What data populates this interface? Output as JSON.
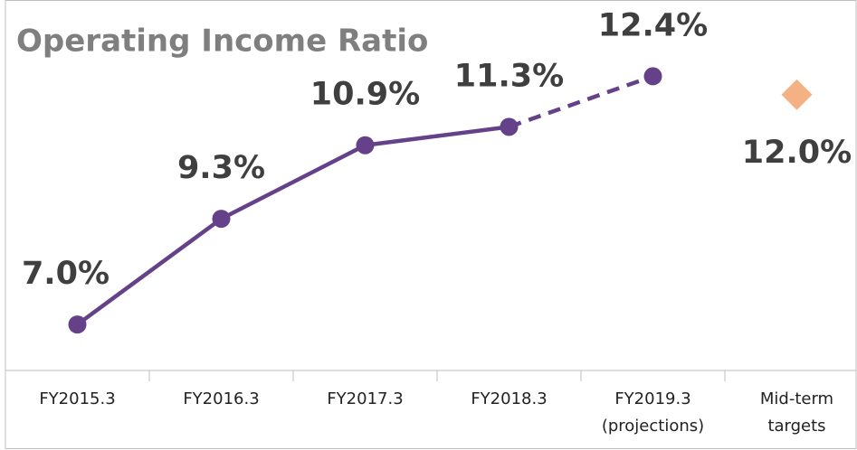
{
  "chart_data": {
    "type": "line",
    "title": "Operating Income Ratio",
    "categories": [
      "FY2015.3",
      "FY2016.3",
      "FY2017.3",
      "FY2018.3",
      "FY2019.3\n(projections)",
      "Mid-term\ntargets"
    ],
    "series": [
      {
        "color": "#65418a",
        "marker": "circle",
        "dash_from": 3,
        "values": [
          7.0,
          9.3,
          10.9,
          11.3,
          12.4,
          null
        ],
        "value_labels": [
          "7.0%",
          "9.3%",
          "10.9%",
          "11.3%",
          "12.4%",
          null
        ]
      },
      {
        "color": "#f4b183",
        "marker": "diamond",
        "values": [
          null,
          null,
          null,
          null,
          null,
          12.0
        ],
        "value_labels": [
          null,
          null,
          null,
          null,
          null,
          "12.0%"
        ]
      }
    ],
    "ylim": [
      6,
      14
    ]
  }
}
